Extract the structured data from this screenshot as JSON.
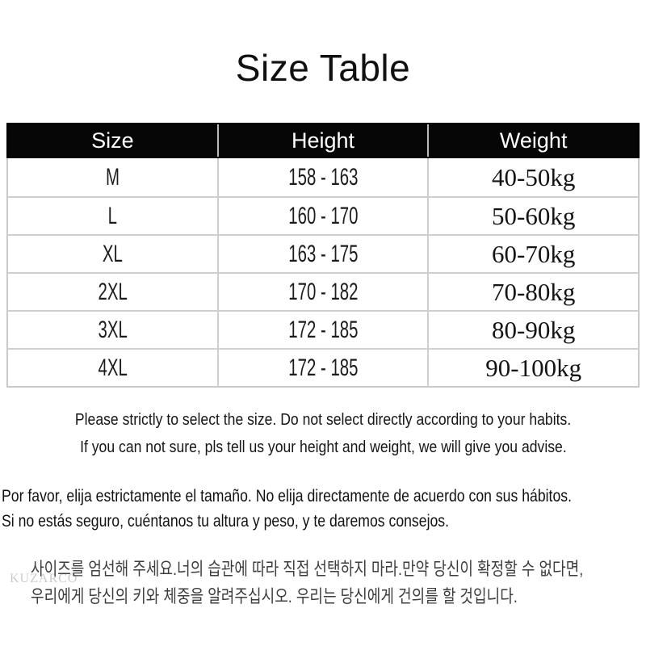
{
  "page": {
    "title": "Size Table"
  },
  "table": {
    "headers": [
      "Size",
      "Height",
      "Weight"
    ],
    "rows": [
      {
        "size": "M",
        "height": "158 - 163",
        "weight": "40-50kg"
      },
      {
        "size": "L",
        "height": "160 - 170",
        "weight": "50-60kg"
      },
      {
        "size": "XL",
        "height": "163 - 175",
        "weight": "60-70kg"
      },
      {
        "size": "2XL",
        "height": "170 - 182",
        "weight": "70-80kg"
      },
      {
        "size": "3XL",
        "height": "172 - 185",
        "weight": "80-90kg"
      },
      {
        "size": "4XL",
        "height": "172 - 185",
        "weight": "90-100kg"
      }
    ]
  },
  "notes_en": {
    "line1": "Please strictly to select the size. Do not select directly according to your habits.",
    "line2": "If you can not sure, pls tell us your height and weight, we will give you advise."
  },
  "notes_es": {
    "line1": "Por favor, elija estrictamente el tamaño. No elija directamente de acuerdo con sus hábitos.",
    "line2": "Si no estás seguro, cuéntanos tu altura y peso, y te daremos consejos."
  },
  "notes_ko": {
    "line1": "사이즈를 엄선해 주세요.너의 습관에 따라 직접 선택하지 마라.만약 당신이 확정할 수 없다면,",
    "line2": "우리에게 당신의 키와 체중을 알려주십시오. 우리는 당신에게 건의를 할 것입니다."
  },
  "watermark": "KUZARCO",
  "colors": {
    "background": "#ffffff",
    "header_bg": "#060606",
    "header_text": "#ffffff",
    "grid_line": "#cfcfcf",
    "body_text": "#1a1a1a",
    "korean_text": "#3d3d3d",
    "watermark": "#cbcbcb"
  }
}
